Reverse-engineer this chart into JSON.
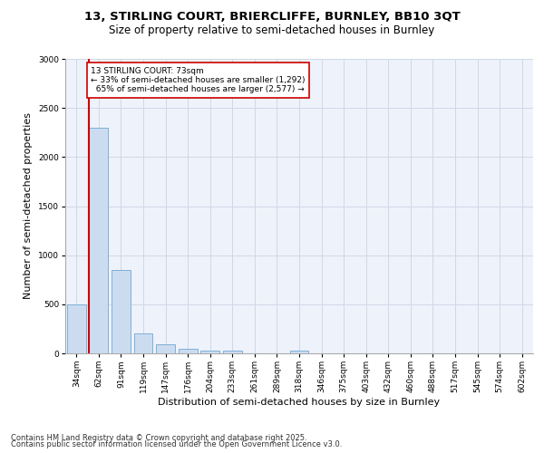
{
  "title1": "13, STIRLING COURT, BRIERCLIFFE, BURNLEY, BB10 3QT",
  "title2": "Size of property relative to semi-detached houses in Burnley",
  "xlabel": "Distribution of semi-detached houses by size in Burnley",
  "ylabel": "Number of semi-detached properties",
  "categories": [
    "34sqm",
    "62sqm",
    "91sqm",
    "119sqm",
    "147sqm",
    "176sqm",
    "204sqm",
    "233sqm",
    "261sqm",
    "289sqm",
    "318sqm",
    "346sqm",
    "375sqm",
    "403sqm",
    "432sqm",
    "460sqm",
    "488sqm",
    "517sqm",
    "545sqm",
    "574sqm",
    "602sqm"
  ],
  "values": [
    500,
    2300,
    850,
    200,
    90,
    45,
    30,
    25,
    0,
    0,
    25,
    0,
    0,
    0,
    0,
    0,
    0,
    0,
    0,
    0,
    0
  ],
  "bar_color": "#ccdcf0",
  "bar_edge_color": "#7fb0d8",
  "subject_label": "13 STIRLING COURT: 73sqm",
  "pct_smaller": "33% of semi-detached houses are smaller (1,292)",
  "pct_larger": "65% of semi-detached houses are larger (2,577)",
  "ylim": [
    0,
    3000
  ],
  "yticks": [
    0,
    500,
    1000,
    1500,
    2000,
    2500,
    3000
  ],
  "grid_color": "#d0d8e8",
  "bg_color": "#eef2fa",
  "footer1": "Contains HM Land Registry data © Crown copyright and database right 2025.",
  "footer2": "Contains public sector information licensed under the Open Government Licence v3.0.",
  "title1_fontsize": 9.5,
  "title2_fontsize": 8.5,
  "axis_label_fontsize": 8,
  "tick_fontsize": 6.5,
  "footer_fontsize": 6
}
